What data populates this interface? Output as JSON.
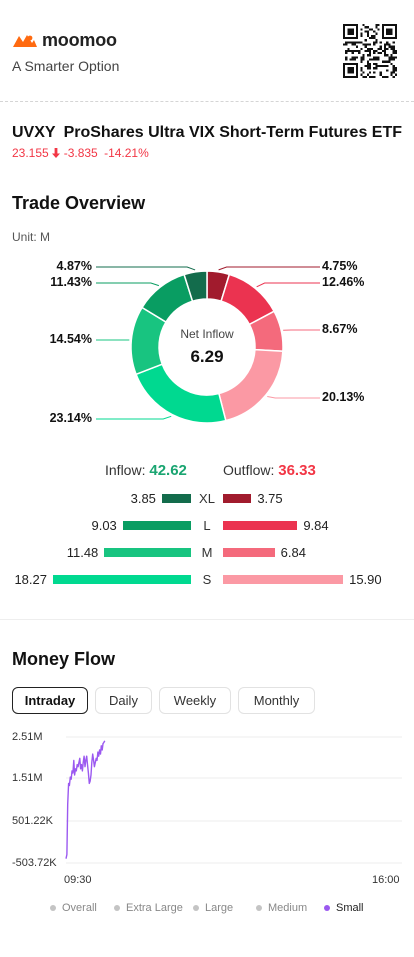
{
  "header": {
    "brand": "moomoo",
    "tagline": "A Smarter Option"
  },
  "ticker": {
    "symbol": "UVXY",
    "name": "ProShares Ultra VIX Short-Term Futures ETF",
    "price": "23.155",
    "change": "-3.835",
    "change_pct": "-14.21%",
    "down_color": "#f23645"
  },
  "trade_overview": {
    "title": "Trade Overview",
    "unit": "Unit: M",
    "center_label": "Net Inflow",
    "center_value": "6.29",
    "inflow_label": "Inflow:",
    "inflow_value": "42.62",
    "outflow_label": "Outflow:",
    "outflow_value": "36.33",
    "donut": [
      {
        "side": "outflow",
        "size": "XL",
        "pct": 4.75,
        "label": "4.75%",
        "color": "#a11b2d"
      },
      {
        "side": "outflow",
        "size": "L",
        "pct": 12.46,
        "label": "12.46%",
        "color": "#eb3350"
      },
      {
        "side": "outflow",
        "size": "M",
        "pct": 8.67,
        "label": "8.67%",
        "color": "#f46a7c"
      },
      {
        "side": "outflow",
        "size": "S",
        "pct": 20.13,
        "label": "20.13%",
        "color": "#fb99a4"
      },
      {
        "side": "inflow",
        "size": "S",
        "pct": 23.14,
        "label": "23.14%",
        "color": "#00d990"
      },
      {
        "side": "inflow",
        "size": "M",
        "pct": 14.54,
        "label": "14.54%",
        "color": "#18c480"
      },
      {
        "side": "inflow",
        "size": "L",
        "pct": 11.43,
        "label": "11.43%",
        "color": "#099d62"
      },
      {
        "side": "inflow",
        "size": "XL",
        "pct": 4.87,
        "label": "4.87%",
        "color": "#136c4c"
      }
    ],
    "bars": [
      {
        "size": "XL",
        "inflow": 3.85,
        "inflow_label": "3.85",
        "outflow": 3.75,
        "outflow_label": "3.75",
        "in_color": "#136c4c",
        "out_color": "#a11b2d"
      },
      {
        "size": "L",
        "inflow": 9.03,
        "inflow_label": "9.03",
        "outflow": 9.84,
        "outflow_label": "9.84",
        "in_color": "#099d62",
        "out_color": "#eb3350"
      },
      {
        "size": "M",
        "inflow": 11.48,
        "inflow_label": "11.48",
        "outflow": 6.84,
        "outflow_label": "6.84",
        "in_color": "#18c480",
        "out_color": "#f46a7c"
      },
      {
        "size": "S",
        "inflow": 18.27,
        "inflow_label": "18.27",
        "outflow": 15.9,
        "outflow_label": "15.90",
        "in_color": "#00d990",
        "out_color": "#fb99a4"
      }
    ],
    "inflow_color": "#1aa571",
    "outflow_color": "#f23645"
  },
  "money_flow": {
    "title": "Money Flow",
    "tabs": [
      "Intraday",
      "Daily",
      "Weekly",
      "Monthly"
    ],
    "active_tab": "Intraday",
    "y_ticks": [
      "2.51M",
      "1.51M",
      "501.22K",
      "-503.72K"
    ],
    "x_ticks": [
      "09:30",
      "16:00"
    ],
    "legend": [
      "Overall",
      "Extra Large",
      "Large",
      "Medium",
      "Small"
    ],
    "active_series": "Small",
    "series_color": "#9b59f0"
  },
  "chart_data": {
    "type": "line",
    "ylim": [
      -503720,
      2510000
    ],
    "y_ticks": [
      "2.51M",
      "1.51M",
      "501.22K",
      "-503.72K"
    ],
    "x_ticks": [
      "09:30",
      "16:00"
    ],
    "grid": true,
    "series": [
      {
        "name": "Small",
        "color": "#9b59f0",
        "x": [
          "09:30",
          "09:31",
          "09:32",
          "09:33",
          "09:34",
          "09:35",
          "09:36",
          "09:37",
          "09:38",
          "09:39",
          "09:40",
          "09:41",
          "09:42",
          "09:43",
          "09:44",
          "09:45",
          "09:46",
          "09:47",
          "09:48",
          "09:49",
          "09:50",
          "09:51",
          "09:52",
          "09:53",
          "09:54",
          "09:55",
          "09:56",
          "09:57",
          "09:58",
          "09:59",
          "10:00",
          "10:01",
          "10:02",
          "10:03",
          "10:04",
          "10:05",
          "10:06",
          "10:07",
          "10:08",
          "10:09",
          "10:10",
          "10:11",
          "10:12",
          "10:13",
          "10:14",
          "10:15"
        ],
        "values": [
          -400000,
          -300000,
          900000,
          1400000,
          1350000,
          1550000,
          1500000,
          1700000,
          1650000,
          1950000,
          1600000,
          1750000,
          1700000,
          1850000,
          1800000,
          1900000,
          2000000,
          1750000,
          1850000,
          1700000,
          1900000,
          2050000,
          1800000,
          1950000,
          2050000,
          1850000,
          1650000,
          1400000,
          1450000,
          1600000,
          1900000,
          2100000,
          1950000,
          1800000,
          1900000,
          2000000,
          1950000,
          2150000,
          2050000,
          2200000,
          2100000,
          2300000,
          2200000,
          2350000,
          2380000,
          2420000
        ]
      }
    ]
  }
}
